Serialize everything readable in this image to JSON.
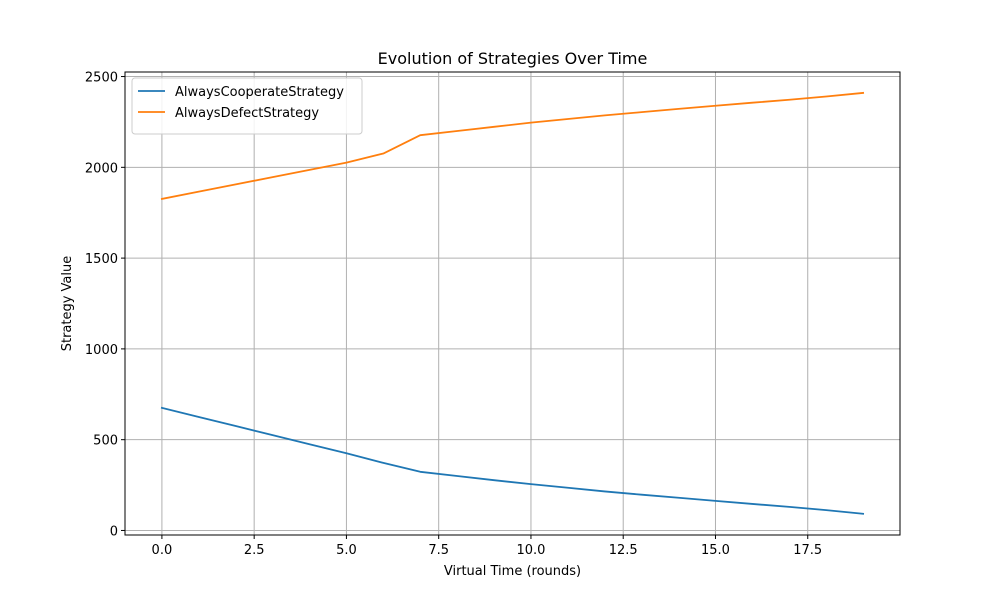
{
  "chart_data": {
    "type": "line",
    "title": "Evolution of Strategies Over Time",
    "xlabel": "Virtual Time (rounds)",
    "ylabel": "Strategy Value",
    "xlim": [
      -1,
      20
    ],
    "ylim": [
      -25,
      2525
    ],
    "xticks": [
      0,
      2.5,
      5,
      7.5,
      10,
      12.5,
      15,
      17.5
    ],
    "xtick_labels": [
      "0.0",
      "2.5",
      "5.0",
      "7.5",
      "10.0",
      "12.5",
      "15.0",
      "17.5"
    ],
    "yticks": [
      0,
      500,
      1000,
      1500,
      2000,
      2500
    ],
    "ytick_labels": [
      "0",
      "500",
      "1000",
      "1500",
      "2000",
      "2500"
    ],
    "grid": true,
    "legend_position": "top-left",
    "x": [
      0,
      1,
      2,
      3,
      4,
      5,
      6,
      7,
      8,
      9,
      10,
      11,
      12,
      13,
      14,
      15,
      16,
      17,
      18,
      19
    ],
    "series": [
      {
        "name": "AlwaysCooperateStrategy",
        "color": "#1f77b4",
        "values": [
          675,
          625,
          575,
          525,
          475,
          425,
          372,
          323,
          300,
          277,
          255,
          235,
          215,
          197,
          180,
          163,
          146,
          130,
          112,
          92
        ]
      },
      {
        "name": "AlwaysDefectStrategy",
        "color": "#ff7f0e",
        "values": [
          1826,
          1866,
          1906,
          1946,
          1986,
          2026,
          2076,
          2177,
          2200,
          2223,
          2246,
          2266,
          2286,
          2304,
          2322,
          2339,
          2356,
          2372,
          2390,
          2410
        ]
      }
    ]
  }
}
